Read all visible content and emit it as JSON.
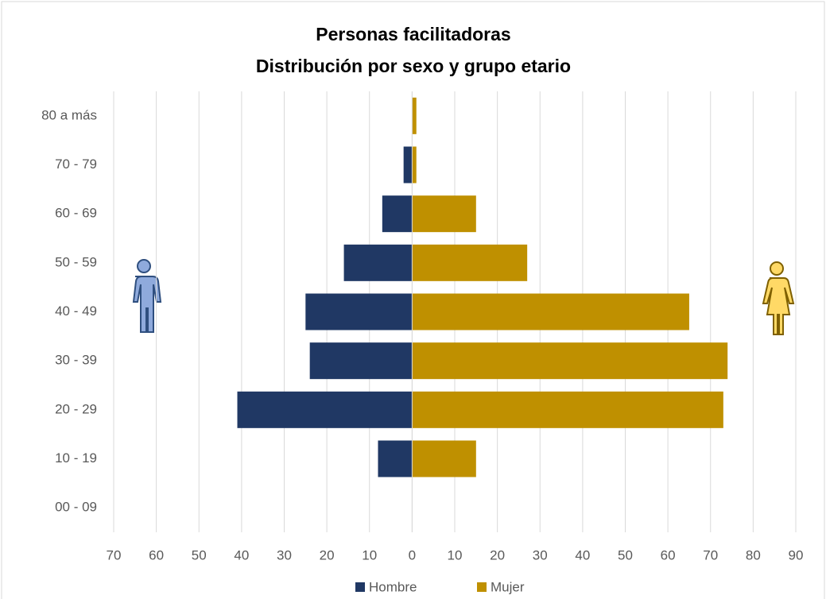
{
  "chart_data": {
    "type": "pyramid",
    "title": "Personas facilitadoras",
    "subtitle": "Distribución por sexo y grupo etario",
    "categories": [
      "80 a más",
      "70 - 79",
      "60 - 69",
      "50 - 59",
      "40 - 49",
      "30 - 39",
      "20 - 29",
      "10 - 19",
      "00 - 09"
    ],
    "series": [
      {
        "name": "Hombre",
        "color": "#203864",
        "values": [
          0,
          -2,
          -7,
          -16,
          -25,
          -24,
          -41,
          -8,
          0
        ]
      },
      {
        "name": "Mujer",
        "color": "#bf9000",
        "values": [
          1,
          1,
          15,
          27,
          65,
          74,
          73,
          15,
          0
        ]
      }
    ],
    "xlim": [
      -70,
      90
    ],
    "xticks": [
      {
        "value": -70,
        "label": "70"
      },
      {
        "value": -60,
        "label": "60"
      },
      {
        "value": -50,
        "label": "50"
      },
      {
        "value": -40,
        "label": "40"
      },
      {
        "value": -30,
        "label": "30"
      },
      {
        "value": -20,
        "label": "20"
      },
      {
        "value": -10,
        "label": "10"
      },
      0,
      10,
      20,
      30,
      40,
      50,
      60,
      70,
      80,
      90
    ],
    "grid": true,
    "legend": "bottom"
  }
}
